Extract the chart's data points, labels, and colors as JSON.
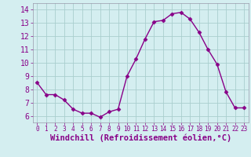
{
  "x": [
    0,
    1,
    2,
    3,
    4,
    5,
    6,
    7,
    8,
    9,
    10,
    11,
    12,
    13,
    14,
    15,
    16,
    17,
    18,
    19,
    20,
    21,
    22,
    23
  ],
  "y": [
    8.5,
    7.6,
    7.6,
    7.2,
    6.5,
    6.2,
    6.2,
    5.9,
    6.3,
    6.5,
    9.0,
    10.3,
    11.8,
    13.1,
    13.2,
    13.7,
    13.8,
    13.3,
    12.3,
    11.0,
    9.9,
    7.8,
    6.6,
    6.6
  ],
  "line_color": "#880088",
  "marker": "D",
  "marker_size": 2.5,
  "bg_color": "#d4eef0",
  "grid_color": "#aacece",
  "xlabel": "Windchill (Refroidissement éolien,°C)",
  "xlabel_fontsize": 7.5,
  "tick_fontsize": 7,
  "xlim": [
    -0.5,
    23.5
  ],
  "ylim": [
    5.5,
    14.5
  ],
  "yticks": [
    6,
    7,
    8,
    9,
    10,
    11,
    12,
    13,
    14
  ],
  "xticks": [
    0,
    1,
    2,
    3,
    4,
    5,
    6,
    7,
    8,
    9,
    10,
    11,
    12,
    13,
    14,
    15,
    16,
    17,
    18,
    19,
    20,
    21,
    22,
    23
  ],
  "spine_color": "#9999aa",
  "label_color": "#880088"
}
